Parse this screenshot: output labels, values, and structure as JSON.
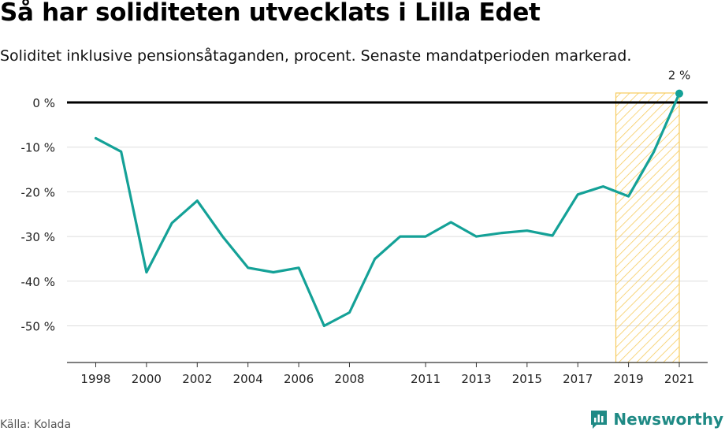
{
  "title": "Så har soliditeten utvecklats i Lilla Edet",
  "subtitle": "Soliditet inklusive pensionsåtaganden, procent. Senaste mandatperioden markerad.",
  "source": "Källa: Kolada",
  "brand": "Newsworthy",
  "colors": {
    "line": "#14a197",
    "highlight": "#f5c242",
    "zero_line": "#000000",
    "grid": "#dddddd"
  },
  "chart_data": {
    "type": "line",
    "x": [
      1998,
      1999,
      2000,
      2001,
      2002,
      2003,
      2004,
      2005,
      2006,
      2007,
      2008,
      2009,
      2010,
      2011,
      2012,
      2013,
      2014,
      2015,
      2016,
      2017,
      2018,
      2019,
      2020,
      2021
    ],
    "values": [
      -8,
      -11,
      -38,
      -27,
      -22,
      -30,
      -37,
      -38,
      -37,
      -50,
      -47,
      -35,
      -30,
      -30,
      -26.8,
      -30,
      -29.2,
      -28.7,
      -29.8,
      -20.6,
      -18.8,
      -21,
      -11,
      2
    ],
    "ylim": [
      -58,
      2
    ],
    "yticks": [
      0,
      -10,
      -20,
      -30,
      -40,
      -50
    ],
    "ytick_labels": [
      "0 %",
      "-10 %",
      "-20 %",
      "-30 %",
      "-40 %",
      "-50 %"
    ],
    "xticks": [
      1998,
      2000,
      2002,
      2004,
      2006,
      2008,
      2011,
      2013,
      2015,
      2017,
      2019,
      2021
    ],
    "xtick_labels": [
      "1998",
      "2000",
      "2002",
      "2004",
      "2006",
      "2008",
      "2011",
      "2013",
      "2015",
      "2017",
      "2019",
      "2021"
    ],
    "highlight_range": [
      2018.5,
      2021
    ],
    "end_label": "2 %",
    "grid": true
  }
}
